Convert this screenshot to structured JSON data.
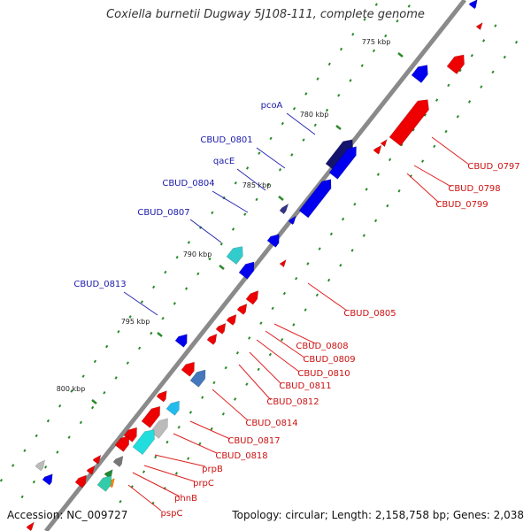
{
  "title": "Coxiella burnetii Dugway 5J108-111, complete genome",
  "footer": {
    "accession": "Accession: NC_009727",
    "summary": "Topology: circular; Length: 2,158,758 bp; Genes: 2,038"
  },
  "colors": {
    "forward": "#0000ee",
    "reverse": "#ee0000",
    "backbone": "#888888",
    "tick": "#2a8a2a",
    "forward_label": "#1a1aa8",
    "reverse_label": "#cc1111"
  },
  "ticks": [
    {
      "text": "775 kbp"
    },
    {
      "text": "780 kbp"
    },
    {
      "text": "785 kbp"
    },
    {
      "text": "790 kbp"
    },
    {
      "text": "795 kbp"
    },
    {
      "text": "800 kbp"
    }
  ],
  "labels": {
    "forward": [
      {
        "text": "pcoA"
      },
      {
        "text": "CBUD_0801"
      },
      {
        "text": "qacE"
      },
      {
        "text": "CBUD_0804"
      },
      {
        "text": "CBUD_0807"
      },
      {
        "text": "CBUD_0813"
      }
    ],
    "reverse": [
      {
        "text": "CBUD_0797"
      },
      {
        "text": "CBUD_0798"
      },
      {
        "text": "CBUD_0799"
      },
      {
        "text": "CBUD_0805"
      },
      {
        "text": "CBUD_0808"
      },
      {
        "text": "CBUD_0809"
      },
      {
        "text": "CBUD_0810"
      },
      {
        "text": "CBUD_0811"
      },
      {
        "text": "CBUD_0812"
      },
      {
        "text": "CBUD_0814"
      },
      {
        "text": "CBUD_0817"
      },
      {
        "text": "CBUD_0818"
      },
      {
        "text": "prpB"
      },
      {
        "text": "prpC"
      },
      {
        "text": "phnB"
      },
      {
        "text": "pspC"
      }
    ]
  }
}
